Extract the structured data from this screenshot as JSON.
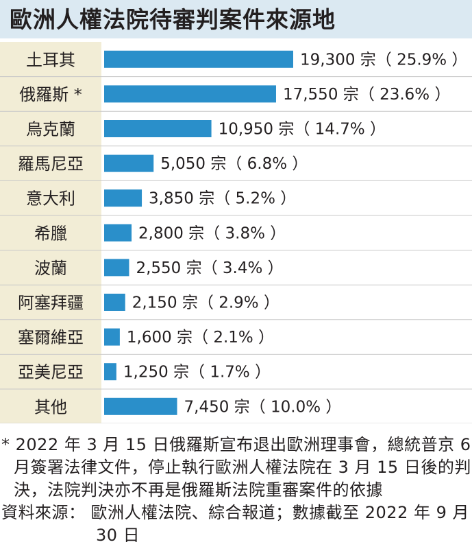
{
  "title": "歐洲人權法院待審判案件來源地",
  "chart_data": {
    "type": "bar",
    "orientation": "horizontal",
    "title": "歐洲人權法院待審判案件來源地",
    "unit": "宗",
    "categories": [
      "土耳其",
      "俄羅斯 *",
      "烏克蘭",
      "羅馬尼亞",
      "意大利",
      "希臘",
      "波蘭",
      "阿塞拜疆",
      "塞爾維亞",
      "亞美尼亞",
      "其他"
    ],
    "values": [
      19300,
      17550,
      10950,
      5050,
      3850,
      2800,
      2550,
      2150,
      1600,
      1250,
      7450
    ],
    "value_labels": [
      "19,300 宗（ 25.9% ）",
      "17,550 宗（ 23.6% ）",
      "10,950 宗（ 14.7% ）",
      "5,050 宗（ 6.8% ）",
      "3,850 宗（ 5.2% ）",
      "2,800 宗（ 3.8% ）",
      "2,550 宗（ 3.4% ）",
      "2,150 宗（ 2.9% ）",
      "1,600 宗（ 2.1% ）",
      "1,250 宗（ 1.7% ）",
      "7,450 宗（ 10.0% ）"
    ],
    "percentages": [
      25.9,
      23.6,
      14.7,
      6.8,
      5.2,
      3.8,
      3.4,
      2.9,
      2.1,
      1.7,
      10.0
    ],
    "xlim": [
      0,
      19300
    ],
    "grid": false,
    "legend": "none",
    "colors": {
      "bar": "#2a8fca",
      "label_panel": "#f2edd6",
      "title_bg": "#dbe9f2",
      "divider": "#c8c8c8",
      "text": "#231f20"
    }
  },
  "footnote": {
    "note": "* 2022 年 3 月 15 日俄羅斯宣布退出歐洲理事會，總統普京 6 月簽署法律文件，停止執行歐洲人權法院在 3 月 15 日後的判決，法院判決亦不再是俄羅斯法院重審案件的依據",
    "source": "資料來源： 歐洲人權法院、綜合報道；數據截至 2022 年 9 月 30 日"
  }
}
